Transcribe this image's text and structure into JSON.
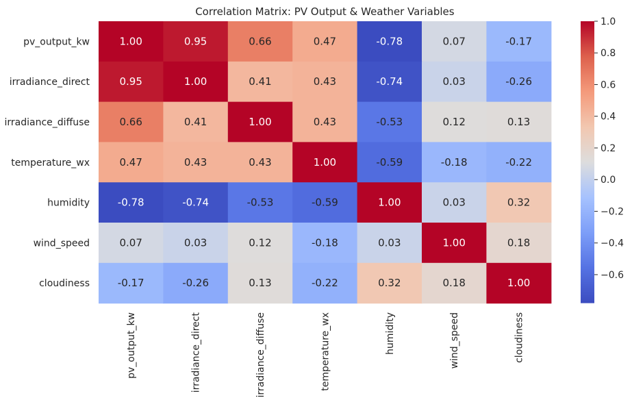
{
  "chart_data": {
    "type": "heatmap",
    "title": "Correlation Matrix: PV Output & Weather Variables",
    "row_labels": [
      "pv_output_kw",
      "irradiance_direct",
      "irradiance_diffuse",
      "temperature_wx",
      "humidity",
      "wind_speed",
      "cloudiness"
    ],
    "col_labels": [
      "pv_output_kw",
      "irradiance_direct",
      "irradiance_diffuse",
      "temperature_wx",
      "humidity",
      "wind_speed",
      "cloudiness"
    ],
    "values": [
      [
        1.0,
        0.95,
        0.66,
        0.47,
        -0.78,
        0.07,
        -0.17
      ],
      [
        0.95,
        1.0,
        0.41,
        0.43,
        -0.74,
        0.03,
        -0.26
      ],
      [
        0.66,
        0.41,
        1.0,
        0.43,
        -0.53,
        0.12,
        0.13
      ],
      [
        0.47,
        0.43,
        0.43,
        1.0,
        -0.59,
        -0.18,
        -0.22
      ],
      [
        -0.78,
        -0.74,
        -0.53,
        -0.59,
        1.0,
        0.03,
        0.32
      ],
      [
        0.07,
        0.03,
        0.12,
        -0.18,
        0.03,
        1.0,
        0.18
      ],
      [
        -0.17,
        -0.26,
        0.13,
        -0.22,
        0.32,
        0.18,
        1.0
      ]
    ],
    "colormap": "coolwarm",
    "vmin": -0.78,
    "vmax": 1.0,
    "colorbar_ticks": [
      "1.0",
      "0.8",
      "0.6",
      "0.4",
      "0.2",
      "0.0",
      "−0.2",
      "−0.4",
      "−0.6"
    ],
    "colorbar_tick_values": [
      1.0,
      0.8,
      0.6,
      0.4,
      0.2,
      0.0,
      -0.2,
      -0.4,
      -0.6
    ],
    "annotation_format": "2 decimals"
  }
}
